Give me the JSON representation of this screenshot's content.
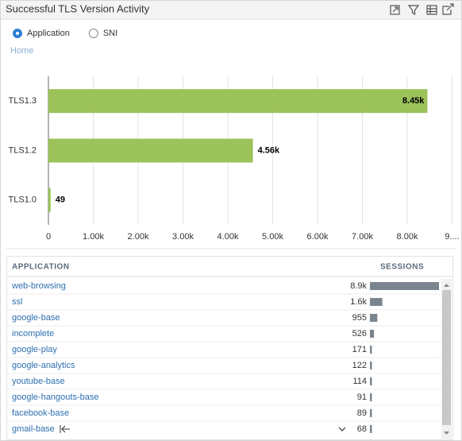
{
  "header": {
    "title": "Successful TLS Version Activity"
  },
  "view_options": {
    "options": [
      "Application",
      "SNI"
    ],
    "selected": "Application"
  },
  "breadcrumb": "Home",
  "chart_data": {
    "type": "bar",
    "orientation": "horizontal",
    "categories": [
      "TLS1.3",
      "TLS1.2",
      "TLS1.0"
    ],
    "values": [
      8450,
      4560,
      49
    ],
    "value_labels": [
      "8.45k",
      "4.56k",
      "49"
    ],
    "color": "#9cc25a",
    "xlim": [
      0,
      9000
    ],
    "xticks": [
      0,
      {
        "value": 1000,
        "label": "1.00k"
      },
      {
        "value": 2000,
        "label": "2.00k"
      },
      {
        "value": 3000,
        "label": "3.00k"
      },
      {
        "value": 4000,
        "label": "4.00k"
      },
      {
        "value": 5000,
        "label": "5.00k"
      },
      {
        "value": 6000,
        "label": "6.00k"
      },
      {
        "value": 7000,
        "label": "7.00k"
      },
      {
        "value": 8000,
        "label": "8.00k"
      },
      {
        "value": 9000,
        "label": "9...."
      }
    ],
    "grid": true
  },
  "table": {
    "columns": [
      "APPLICATION",
      "SESSIONS"
    ],
    "applications": [
      "web-browsing",
      "ssl",
      "google-base",
      "incomplete",
      "google-play",
      "google-analytics",
      "youtube-base",
      "google-hangouts-base",
      "facebook-base",
      "gmail-base"
    ],
    "sessions": [
      8900,
      1600,
      955,
      526,
      171,
      122,
      114,
      91,
      89,
      68
    ],
    "value_labels": [
      "8.9k",
      "1.6k",
      "955",
      "526",
      "171",
      "122",
      "114",
      "91",
      "89",
      "68"
    ],
    "bar_color": "#7b8590"
  }
}
